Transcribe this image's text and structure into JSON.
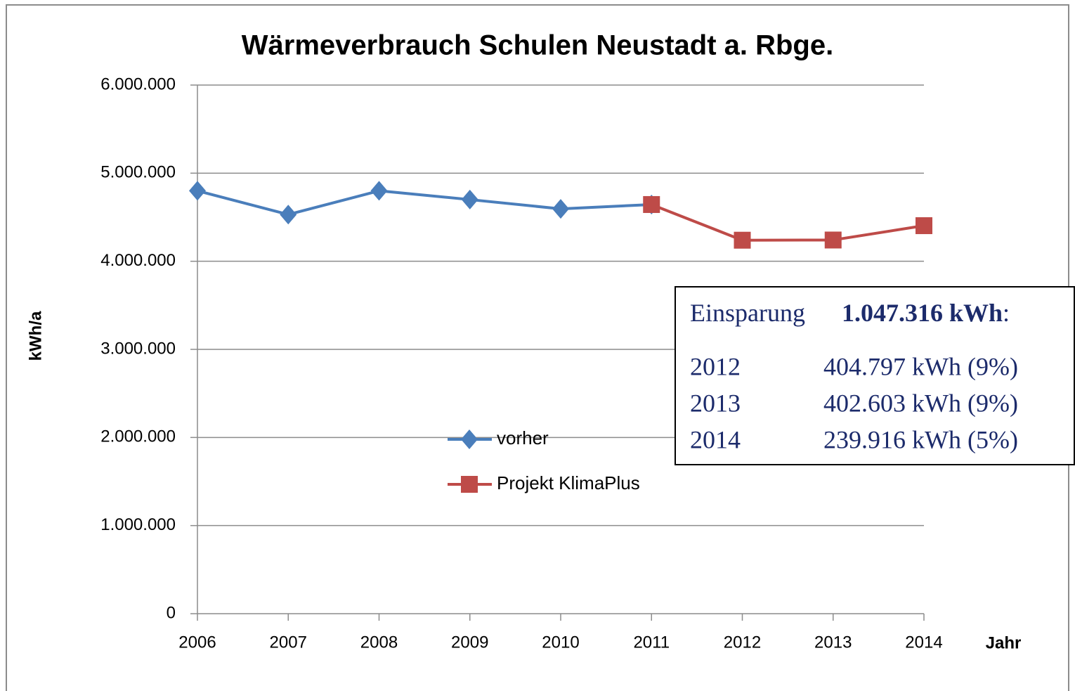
{
  "chart_data": {
    "type": "line",
    "title": "Wärmeverbrauch Schulen Neustadt a. Rbge.",
    "y_label": "kWh/a",
    "x_label": "Jahr",
    "categories": [
      "2006",
      "2007",
      "2008",
      "2009",
      "2010",
      "2011",
      "2012",
      "2013",
      "2014"
    ],
    "series": [
      {
        "name": "vorher",
        "color": "#4a7ebb",
        "marker": "diamond",
        "values": [
          4800000,
          4530000,
          4800000,
          4700000,
          4595000,
          4644000,
          null,
          null,
          null
        ]
      },
      {
        "name": "Projekt KlimaPlus",
        "color": "#be4b48",
        "marker": "square",
        "values": [
          null,
          null,
          null,
          null,
          null,
          4644000,
          4239000,
          4241000,
          4404000
        ]
      }
    ],
    "ylim": [
      0,
      6000000
    ],
    "yticks": [
      0,
      {
        "value": 1000000,
        "label": "1.000.000"
      },
      {
        "value": 2000000,
        "label": "2.000.000"
      },
      {
        "value": 3000000,
        "label": "3.000.000"
      },
      {
        "value": 4000000,
        "label": "4.000.000"
      },
      {
        "value": 5000000,
        "label": "5.000.000"
      },
      {
        "value": 6000000,
        "label": "6.000.000"
      }
    ],
    "grid": true,
    "annotation": {
      "heading": "Einsparung",
      "total": "1.047.316 kWh",
      "colon": ":",
      "rows": [
        [
          "2012",
          "404.797 kWh (9%)"
        ],
        [
          "2013",
          "402.603 kWh (9%)"
        ],
        [
          "2014",
          "239.916 kWh (5%)"
        ]
      ]
    }
  }
}
